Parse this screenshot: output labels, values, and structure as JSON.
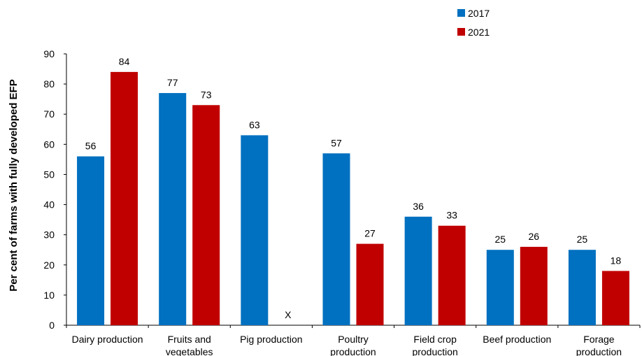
{
  "chart_data": {
    "type": "bar",
    "title": "",
    "xlabel": "",
    "ylabel": "Per cent of farms with fully developed EFP",
    "ylim": [
      0,
      90
    ],
    "yticks": [
      0,
      10,
      20,
      30,
      40,
      50,
      60,
      70,
      80,
      90
    ],
    "grid": false,
    "legend_position": "top-right",
    "categories": [
      [
        "Dairy production"
      ],
      [
        "Fruits and",
        "vegetables"
      ],
      [
        "Pig production"
      ],
      [
        "Poultry",
        "production"
      ],
      [
        "Field crop",
        "production"
      ],
      [
        "Beef production"
      ],
      [
        "Forage",
        "production"
      ]
    ],
    "series": [
      {
        "name": "2017",
        "color": "#0070C0",
        "values": [
          56,
          77,
          63,
          57,
          36,
          25,
          25
        ],
        "labels": [
          "56",
          "77",
          "63",
          "57",
          "36",
          "25",
          "25"
        ]
      },
      {
        "name": "2021",
        "color": "#C00000",
        "values": [
          84,
          73,
          null,
          27,
          33,
          26,
          18
        ],
        "labels": [
          "84",
          "73",
          "X",
          "27",
          "33",
          "26",
          "18"
        ]
      }
    ]
  }
}
